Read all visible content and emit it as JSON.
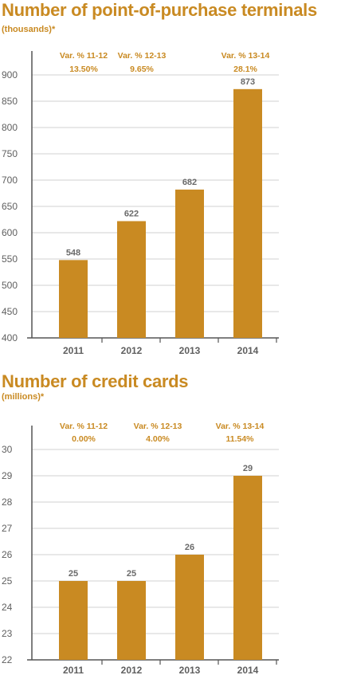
{
  "chart_data": [
    {
      "type": "bar",
      "title": "Number of point-of-purchase terminals",
      "subtitle": "(thousands)*",
      "categories": [
        "2011",
        "2012",
        "2013",
        "2014"
      ],
      "values": [
        548,
        622,
        682,
        873
      ],
      "ylim": [
        400,
        900
      ],
      "yticks": [
        400,
        450,
        500,
        550,
        600,
        650,
        700,
        750,
        800,
        850,
        900
      ],
      "grid": true,
      "bar_color": "#c98a22",
      "variations": [
        {
          "label": "Var. % 11-12",
          "value": "13.50%"
        },
        {
          "label": "Var. % 12-13",
          "value": "9.65%"
        },
        {
          "label": "Var. % 13-14",
          "value": "28.1%"
        }
      ]
    },
    {
      "type": "bar",
      "title": "Number of credit cards",
      "subtitle": "(millions)*",
      "categories": [
        "2011",
        "2012",
        "2013",
        "2014"
      ],
      "values": [
        25,
        25,
        26,
        29
      ],
      "ylim": [
        22,
        30
      ],
      "yticks": [
        22,
        23,
        24,
        25,
        26,
        27,
        28,
        29,
        30
      ],
      "grid": true,
      "bar_color": "#c98a22",
      "variations": [
        {
          "label": "Var. % 11-12",
          "value": "0.00%"
        },
        {
          "label": "Var. % 12-13",
          "value": "4.00%"
        },
        {
          "label": "Var. % 13-14",
          "value": "11.54%"
        }
      ]
    }
  ]
}
